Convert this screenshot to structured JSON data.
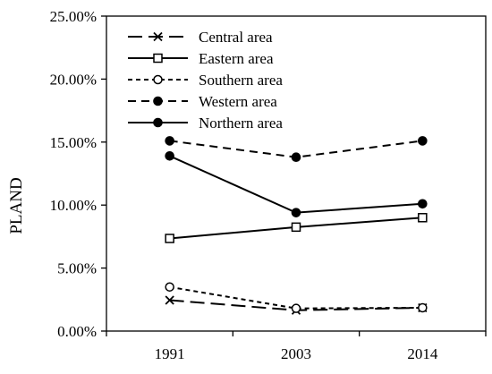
{
  "chart_data": {
    "type": "line",
    "categories": [
      "1991",
      "2003",
      "2014"
    ],
    "ylabel": "PLAND",
    "ylim": [
      0,
      25
    ],
    "y_ticks": [
      0,
      5,
      10,
      15,
      20,
      25
    ],
    "y_tick_labels": [
      "0.00%",
      "5.00%",
      "10.00%",
      "15.00%",
      "20.00%",
      "25.00%"
    ],
    "y_unit": "%",
    "grid": false,
    "legend_position": "top-left",
    "series": [
      {
        "name": "Central area",
        "values": [
          2.45,
          1.65,
          1.85
        ],
        "marker": "x",
        "dash": "long-dash"
      },
      {
        "name": "Eastern area",
        "values": [
          7.35,
          8.25,
          9.0
        ],
        "marker": "square-open",
        "dash": "solid"
      },
      {
        "name": "Southern area",
        "values": [
          3.5,
          1.8,
          1.85
        ],
        "marker": "circle-open",
        "dash": "short-dash"
      },
      {
        "name": "Western area",
        "values": [
          15.1,
          13.8,
          15.1
        ],
        "marker": "circle-filled",
        "dash": "dash"
      },
      {
        "name": "Northern area",
        "values": [
          13.9,
          9.4,
          10.1
        ],
        "marker": "circle-filled",
        "dash": "solid"
      }
    ],
    "colors": {
      "line": "#000000",
      "background": "#ffffff"
    }
  }
}
